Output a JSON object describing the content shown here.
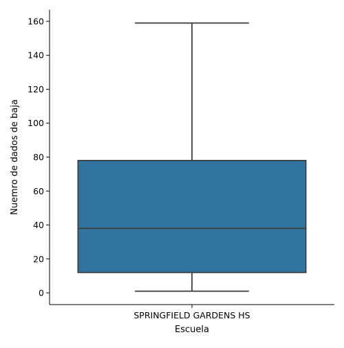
{
  "chart_data": {
    "type": "box",
    "xlabel": "Escuela",
    "ylabel": "Nuemro de dados de baja",
    "categories": [
      "SPRINGFIELD GARDENS HS"
    ],
    "boxes": [
      {
        "category": "SPRINGFIELD GARDENS HS",
        "whisker_low": 1,
        "q1": 12,
        "median": 38,
        "q3": 78,
        "whisker_high": 159
      }
    ],
    "ylim": [
      -6.9,
      166.9
    ],
    "yticks": [
      0,
      20,
      40,
      60,
      80,
      100,
      120,
      140,
      160
    ],
    "grid": false,
    "colors": {
      "box_fill": "#3274a1",
      "line": "#3f3f3f",
      "axis": "#000000"
    }
  }
}
